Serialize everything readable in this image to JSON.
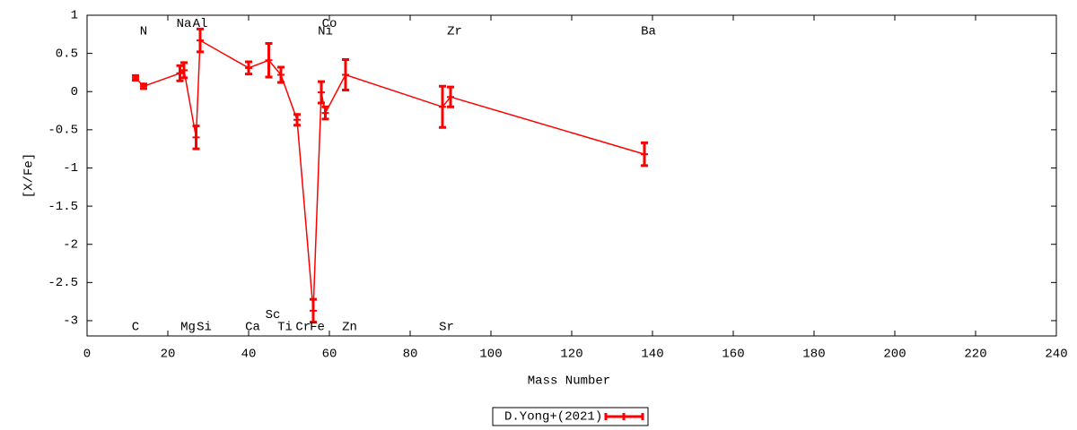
{
  "chart_data": {
    "type": "line",
    "xlabel": "Mass Number",
    "ylabel": "[X/Fe]",
    "x": [
      12,
      14,
      23,
      24,
      27,
      28,
      40,
      45,
      48,
      52,
      56,
      58,
      59,
      64,
      88,
      90,
      138
    ],
    "series": [
      {
        "name": "D.Yong+(2021)",
        "color": "#ff0000",
        "values": [
          0.18,
          0.07,
          0.24,
          0.28,
          -0.6,
          0.67,
          0.31,
          0.41,
          0.22,
          -0.37,
          -2.87,
          -0.01,
          -0.28,
          0.22,
          -0.2,
          -0.07,
          -0.82
        ],
        "errors": [
          0.03,
          0.03,
          0.1,
          0.1,
          0.15,
          0.15,
          0.08,
          0.22,
          0.1,
          0.07,
          0.15,
          0.14,
          0.08,
          0.2,
          0.27,
          0.13,
          0.15
        ]
      }
    ],
    "annotations": [
      {
        "text": "C",
        "x": 12,
        "y": -3.08
      },
      {
        "text": "N",
        "x": 14,
        "y": 0.79
      },
      {
        "text": "Na",
        "x": 24,
        "y": 0.89
      },
      {
        "text": "Mg",
        "x": 25,
        "y": -3.08
      },
      {
        "text": "Al",
        "x": 28,
        "y": 0.89
      },
      {
        "text": "Si",
        "x": 29,
        "y": -3.08
      },
      {
        "text": "Ca",
        "x": 41,
        "y": -3.08
      },
      {
        "text": "Sc",
        "x": 46,
        "y": -2.92
      },
      {
        "text": "Ti",
        "x": 49,
        "y": -3.08
      },
      {
        "text": "Cr",
        "x": 53.5,
        "y": -3.08
      },
      {
        "text": "Fe",
        "x": 57,
        "y": -3.08
      },
      {
        "text": "Ni",
        "x": 59,
        "y": 0.79
      },
      {
        "text": "Co",
        "x": 60,
        "y": 0.89
      },
      {
        "text": "Zn",
        "x": 65,
        "y": -3.08
      },
      {
        "text": "Sr",
        "x": 89,
        "y": -3.08
      },
      {
        "text": "Zr",
        "x": 91,
        "y": 0.79
      },
      {
        "text": "Ba",
        "x": 139,
        "y": 0.79
      }
    ],
    "xlim": [
      0,
      240
    ],
    "ylim": [
      -3.2,
      1
    ],
    "xticks": [
      0,
      20,
      40,
      60,
      80,
      100,
      120,
      140,
      160,
      180,
      200,
      220,
      240
    ],
    "yticks": [
      -3,
      -2.5,
      -2,
      -1.5,
      -1,
      -0.5,
      0,
      0.5,
      1
    ],
    "grid": false,
    "legend": "bottom"
  }
}
